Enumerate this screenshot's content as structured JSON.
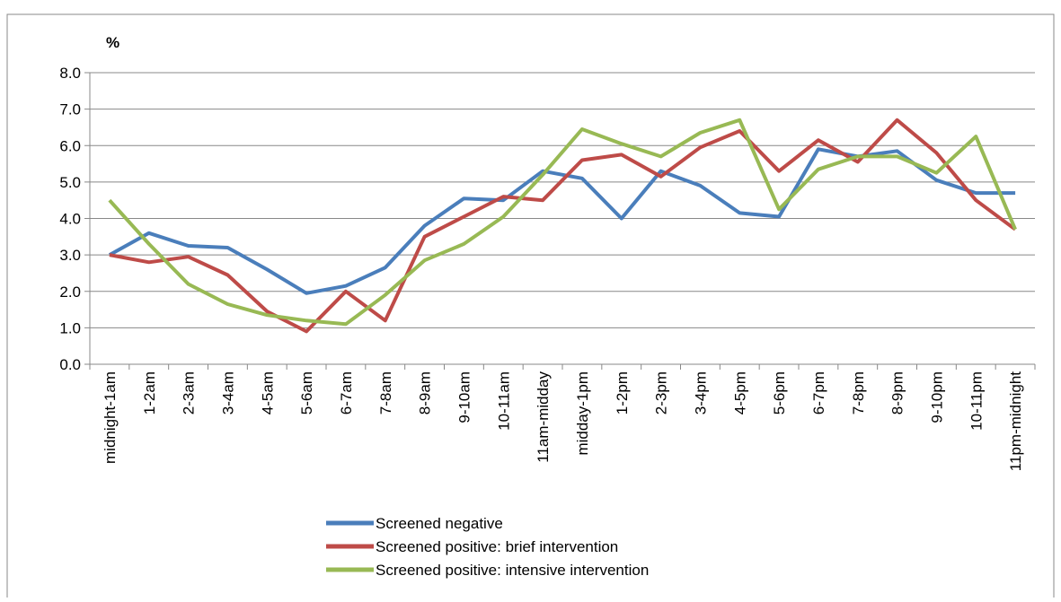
{
  "chart_data": {
    "type": "line",
    "y_axis_label": "%",
    "categories": [
      "midnight-1am",
      "1-2am",
      "2-3am",
      "3-4am",
      "4-5am",
      "5-6am",
      "6-7am",
      "7-8am",
      "8-9am",
      "9-10am",
      "10-11am",
      "11am-midday",
      "midday-1pm",
      "1-2pm",
      "2-3pm",
      "3-4pm",
      "4-5pm",
      "5-6pm",
      "6-7pm",
      "7-8pm",
      "8-9pm",
      "9-10pm",
      "10-11pm",
      "11pm-midnight"
    ],
    "series": [
      {
        "name": "Screened negative",
        "color": "#4a7ebb",
        "values": [
          3.0,
          3.6,
          3.25,
          3.2,
          2.6,
          1.95,
          2.15,
          2.65,
          3.8,
          4.55,
          4.5,
          5.3,
          5.1,
          4.0,
          5.3,
          4.9,
          4.15,
          4.05,
          5.9,
          5.7,
          5.85,
          5.05,
          4.7,
          4.7
        ]
      },
      {
        "name": "Screened positive: brief intervention",
        "color": "#be4b48",
        "values": [
          3.0,
          2.8,
          2.95,
          2.45,
          1.45,
          0.9,
          2.0,
          1.2,
          3.5,
          4.05,
          4.6,
          4.5,
          5.6,
          5.75,
          5.15,
          5.95,
          6.4,
          5.3,
          6.15,
          5.55,
          6.7,
          5.8,
          4.5,
          3.7
        ]
      },
      {
        "name": "Screened positive: intensive intervention",
        "color": "#98b954",
        "values": [
          4.5,
          3.3,
          2.2,
          1.65,
          1.35,
          1.2,
          1.1,
          1.9,
          2.85,
          3.3,
          4.05,
          5.2,
          6.45,
          6.05,
          5.7,
          6.35,
          6.7,
          4.25,
          5.35,
          5.7,
          5.7,
          5.25,
          6.25,
          3.7
        ]
      }
    ],
    "ylim": [
      0,
      8
    ],
    "yticks": [
      {
        "value": 0,
        "label": "0.0"
      },
      {
        "value": 1,
        "label": "1.0"
      },
      {
        "value": 2,
        "label": "2.0"
      },
      {
        "value": 3,
        "label": "3.0"
      },
      {
        "value": 4,
        "label": "4.0"
      },
      {
        "value": 5,
        "label": "5.0"
      },
      {
        "value": 6,
        "label": "6.0"
      },
      {
        "value": 7,
        "label": "7.0"
      },
      {
        "value": 8,
        "label": "8.0"
      }
    ],
    "grid": true,
    "legend": "bottom"
  }
}
